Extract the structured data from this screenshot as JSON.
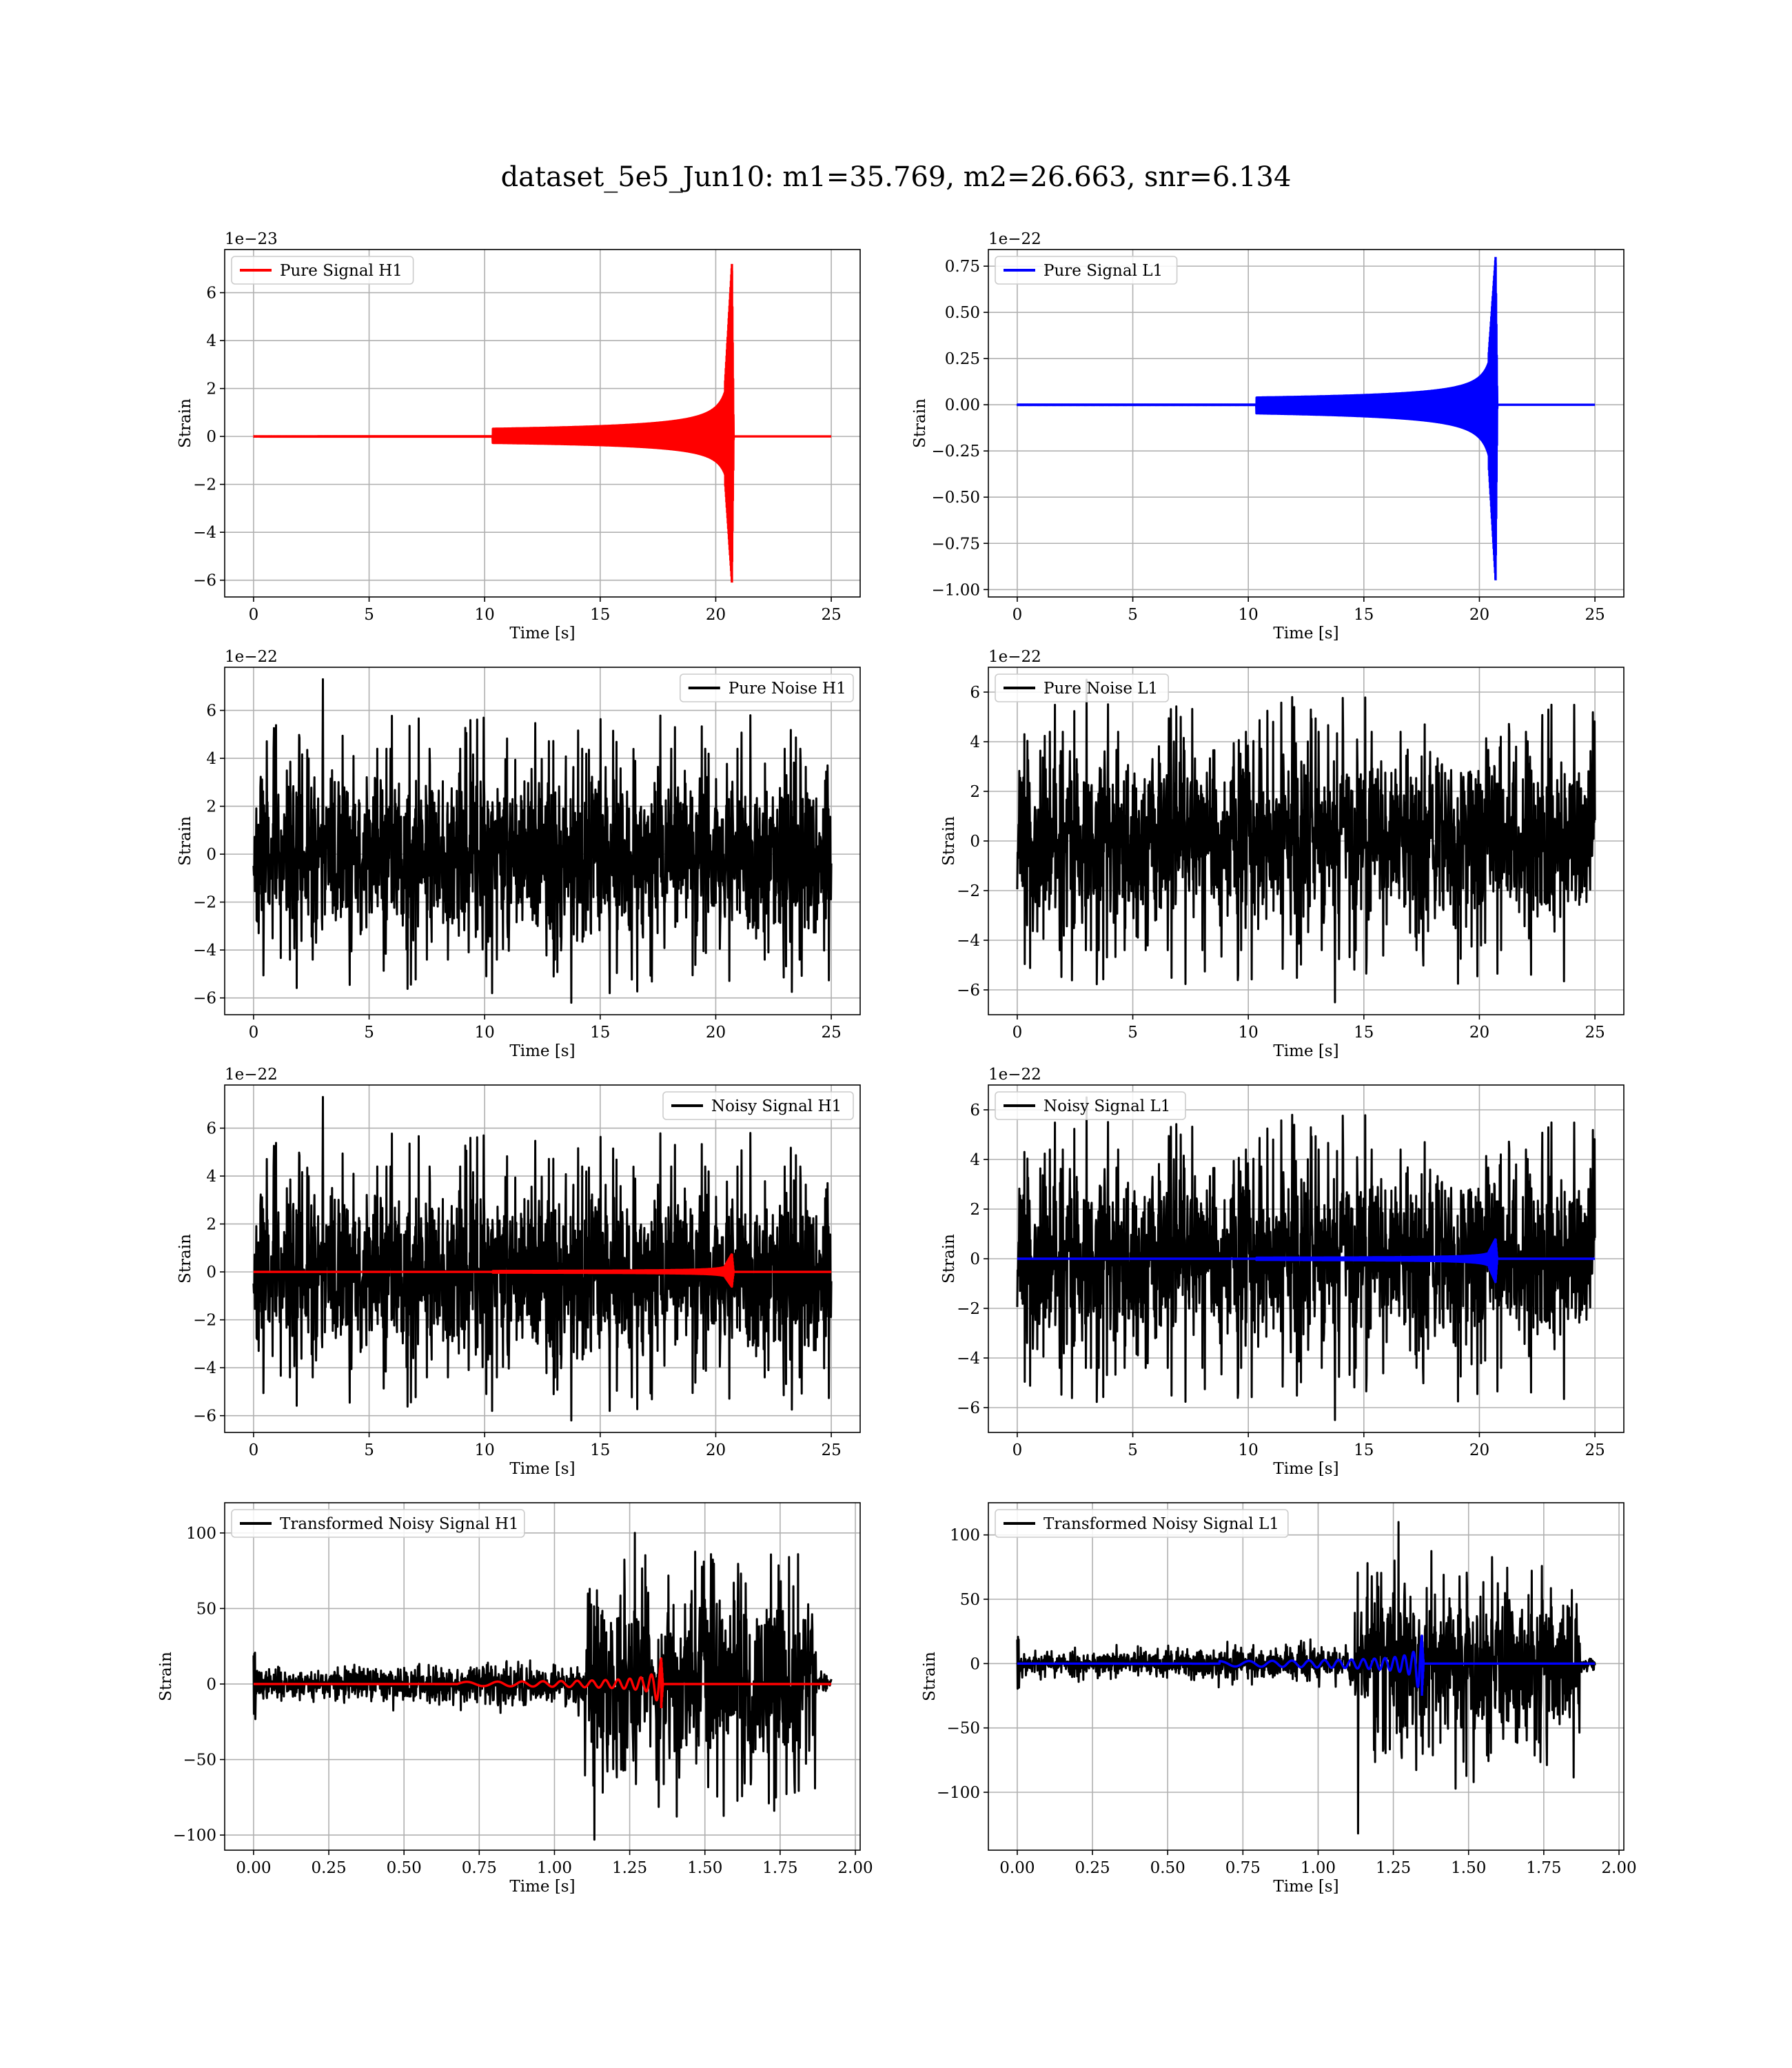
{
  "figure": {
    "title": "dataset_5e5_Jun10: m1=35.769, m2=26.663, snr=6.134"
  },
  "chart_data": [
    {
      "type": "line",
      "id": "pure-signal-h1",
      "legend": "Pure Signal H1",
      "legend_loc": "upper-left",
      "color": "#ff0000",
      "xlabel": "Time [s]",
      "ylabel": "Strain",
      "offset_text": "1e−23",
      "xlim": [
        -1.25,
        26.25
      ],
      "ylim": [
        -6.7,
        7.8
      ],
      "xticks": [
        0,
        5,
        10,
        15,
        20,
        25
      ],
      "xtick_labels": [
        "0",
        "5",
        "10",
        "15",
        "20",
        "25"
      ],
      "yticks": [
        -6,
        -4,
        -2,
        0,
        2,
        4,
        6
      ],
      "ytick_labels": [
        "−6",
        "−4",
        "−2",
        "0",
        "2",
        "4",
        "6"
      ],
      "grid": true,
      "series": [
        {
          "kind": "chirp",
          "color": "#ff0000",
          "t_start": 0,
          "t_end": 25,
          "t_merge": 20.7,
          "peak_pos": 7.2,
          "peak_neg": -6.1,
          "pre_amp": 2.2,
          "ring": 0.3
        }
      ]
    },
    {
      "type": "line",
      "id": "pure-signal-l1",
      "legend": "Pure Signal L1",
      "legend_loc": "upper-left",
      "color": "#0000ff",
      "xlabel": "Time [s]",
      "ylabel": "Strain",
      "offset_text": "1e−22",
      "xlim": [
        -1.25,
        26.25
      ],
      "ylim": [
        -1.04,
        0.84
      ],
      "xticks": [
        0,
        5,
        10,
        15,
        20,
        25
      ],
      "xtick_labels": [
        "0",
        "5",
        "10",
        "15",
        "20",
        "25"
      ],
      "yticks": [
        -1.0,
        -0.75,
        -0.5,
        -0.25,
        0.0,
        0.25,
        0.5,
        0.75
      ],
      "ytick_labels": [
        "−1.00",
        "−0.75",
        "−0.50",
        "−0.25",
        "0.00",
        "0.25",
        "0.50",
        "0.75"
      ],
      "grid": true,
      "series": [
        {
          "kind": "chirp",
          "color": "#0000ff",
          "t_start": 0,
          "t_end": 25,
          "t_merge": 20.7,
          "peak_pos": 0.8,
          "peak_neg": -0.95,
          "pre_amp": 0.27,
          "ring": 0.03
        }
      ]
    },
    {
      "type": "line",
      "id": "pure-noise-h1",
      "legend": "Pure Noise H1",
      "legend_loc": "upper-right",
      "color": "#000000",
      "xlabel": "Time [s]",
      "ylabel": "Strain",
      "offset_text": "1e−22",
      "xlim": [
        -1.25,
        26.25
      ],
      "ylim": [
        -6.7,
        7.8
      ],
      "xticks": [
        0,
        5,
        10,
        15,
        20,
        25
      ],
      "xtick_labels": [
        "0",
        "5",
        "10",
        "15",
        "20",
        "25"
      ],
      "yticks": [
        -6,
        -4,
        -2,
        0,
        2,
        4,
        6
      ],
      "ytick_labels": [
        "−6",
        "−4",
        "−2",
        "0",
        "2",
        "4",
        "6"
      ],
      "grid": true,
      "series": [
        {
          "kind": "noise",
          "color": "#000000",
          "t_start": 0,
          "t_end": 25,
          "amp": 1.35,
          "max": 7.3,
          "min": -6.2,
          "seed": 11
        }
      ]
    },
    {
      "type": "line",
      "id": "pure-noise-l1",
      "legend": "Pure Noise L1",
      "legend_loc": "upper-left",
      "color": "#000000",
      "xlabel": "Time [s]",
      "ylabel": "Strain",
      "offset_text": "1e−22",
      "xlim": [
        -1.25,
        26.25
      ],
      "ylim": [
        -7.0,
        7.0
      ],
      "xticks": [
        0,
        5,
        10,
        15,
        20,
        25
      ],
      "xtick_labels": [
        "0",
        "5",
        "10",
        "15",
        "20",
        "25"
      ],
      "yticks": [
        -6,
        -4,
        -2,
        0,
        2,
        4,
        6
      ],
      "ytick_labels": [
        "−6",
        "−4",
        "−2",
        "0",
        "2",
        "4",
        "6"
      ],
      "grid": true,
      "series": [
        {
          "kind": "noise",
          "color": "#000000",
          "t_start": 0,
          "t_end": 25,
          "amp": 1.35,
          "max": 6.5,
          "min": -6.5,
          "seed": 23
        }
      ]
    },
    {
      "type": "line",
      "id": "noisy-signal-h1",
      "legend": "Noisy Signal H1",
      "legend_loc": "upper-right",
      "color": "#000000",
      "xlabel": "Time [s]",
      "ylabel": "Strain",
      "offset_text": "1e−22",
      "xlim": [
        -1.25,
        26.25
      ],
      "ylim": [
        -6.7,
        7.8
      ],
      "xticks": [
        0,
        5,
        10,
        15,
        20,
        25
      ],
      "xtick_labels": [
        "0",
        "5",
        "10",
        "15",
        "20",
        "25"
      ],
      "yticks": [
        -6,
        -4,
        -2,
        0,
        2,
        4,
        6
      ],
      "ytick_labels": [
        "−6",
        "−4",
        "−2",
        "0",
        "2",
        "4",
        "6"
      ],
      "grid": true,
      "series": [
        {
          "kind": "noise",
          "color": "#000000",
          "t_start": 0,
          "t_end": 25,
          "amp": 1.35,
          "max": 7.3,
          "min": -6.2,
          "seed": 11
        },
        {
          "kind": "chirp",
          "color": "#ff0000",
          "t_start": 0,
          "t_end": 25,
          "t_merge": 20.7,
          "peak_pos": 0.75,
          "peak_neg": -0.62,
          "pre_amp": 0.25,
          "ring": 0.03
        }
      ]
    },
    {
      "type": "line",
      "id": "noisy-signal-l1",
      "legend": "Noisy Signal L1",
      "legend_loc": "upper-left",
      "color": "#000000",
      "xlabel": "Time [s]",
      "ylabel": "Strain",
      "offset_text": "1e−22",
      "xlim": [
        -1.25,
        26.25
      ],
      "ylim": [
        -7.0,
        7.0
      ],
      "xticks": [
        0,
        5,
        10,
        15,
        20,
        25
      ],
      "xtick_labels": [
        "0",
        "5",
        "10",
        "15",
        "20",
        "25"
      ],
      "yticks": [
        -6,
        -4,
        -2,
        0,
        2,
        4,
        6
      ],
      "ytick_labels": [
        "−6",
        "−4",
        "−2",
        "0",
        "2",
        "4",
        "6"
      ],
      "grid": true,
      "series": [
        {
          "kind": "noise",
          "color": "#000000",
          "t_start": 0,
          "t_end": 25,
          "amp": 1.35,
          "max": 6.5,
          "min": -6.5,
          "seed": 23
        },
        {
          "kind": "chirp",
          "color": "#0000ff",
          "t_start": 0,
          "t_end": 25,
          "t_merge": 20.7,
          "peak_pos": 0.8,
          "peak_neg": -0.95,
          "pre_amp": 0.27,
          "ring": 0.03
        }
      ]
    },
    {
      "type": "line",
      "id": "transformed-noisy-signal-h1",
      "legend": "Transformed Noisy Signal H1",
      "legend_loc": "upper-left",
      "color": "#000000",
      "xlabel": "Time [s]",
      "ylabel": "Strain",
      "offset_text": "",
      "xlim": [
        -0.096,
        2.016
      ],
      "ylim": [
        -110,
        120
      ],
      "xticks": [
        0.0,
        0.25,
        0.5,
        0.75,
        1.0,
        1.25,
        1.5,
        1.75,
        2.0
      ],
      "xtick_labels": [
        "0.00",
        "0.25",
        "0.50",
        "0.75",
        "1.00",
        "1.25",
        "1.50",
        "1.75",
        "2.00"
      ],
      "yticks": [
        -100,
        -50,
        0,
        50,
        100
      ],
      "ytick_labels": [
        "−100",
        "−50",
        "0",
        "50",
        "100"
      ],
      "grid": true,
      "series": [
        {
          "kind": "whitened",
          "color": "#000000",
          "t_start": 0,
          "t_end": 1.92,
          "t_jump": 1.1,
          "t_stop": 1.87,
          "amp_low": 4.5,
          "amp_high": 28,
          "max": 100,
          "min": -103,
          "seed": 37
        },
        {
          "kind": "chirp",
          "color": "#ff0000",
          "t_start": 0,
          "t_end": 1.92,
          "t_merge": 1.355,
          "peak_pos": 17,
          "peak_neg": -16,
          "pre_amp": 9,
          "ring": 0.5,
          "cycles": 14
        }
      ]
    },
    {
      "type": "line",
      "id": "transformed-noisy-signal-l1",
      "legend": "Transformed Noisy Signal L1",
      "legend_loc": "upper-left",
      "color": "#000000",
      "xlabel": "Time [s]",
      "ylabel": "Strain",
      "offset_text": "",
      "xlim": [
        -0.096,
        2.016
      ],
      "ylim": [
        -145,
        125
      ],
      "xticks": [
        0.0,
        0.25,
        0.5,
        0.75,
        1.0,
        1.25,
        1.5,
        1.75,
        2.0
      ],
      "xtick_labels": [
        "0.00",
        "0.25",
        "0.50",
        "0.75",
        "1.00",
        "1.25",
        "1.50",
        "1.75",
        "2.00"
      ],
      "yticks": [
        -100,
        -50,
        0,
        50,
        100
      ],
      "ytick_labels": [
        "−100",
        "−50",
        "0",
        "50",
        "100"
      ],
      "grid": true,
      "series": [
        {
          "kind": "whitened",
          "color": "#000000",
          "t_start": 0,
          "t_end": 1.92,
          "t_jump": 1.12,
          "t_stop": 1.87,
          "amp_low": 4.5,
          "amp_high": 28,
          "max": 110,
          "min": -132,
          "seed": 53
        },
        {
          "kind": "chirp",
          "color": "#0000ff",
          "t_start": 0,
          "t_end": 1.92,
          "t_merge": 1.345,
          "peak_pos": 22,
          "peak_neg": -25,
          "pre_amp": 12,
          "ring": 0.5,
          "cycles": 16
        }
      ]
    }
  ]
}
